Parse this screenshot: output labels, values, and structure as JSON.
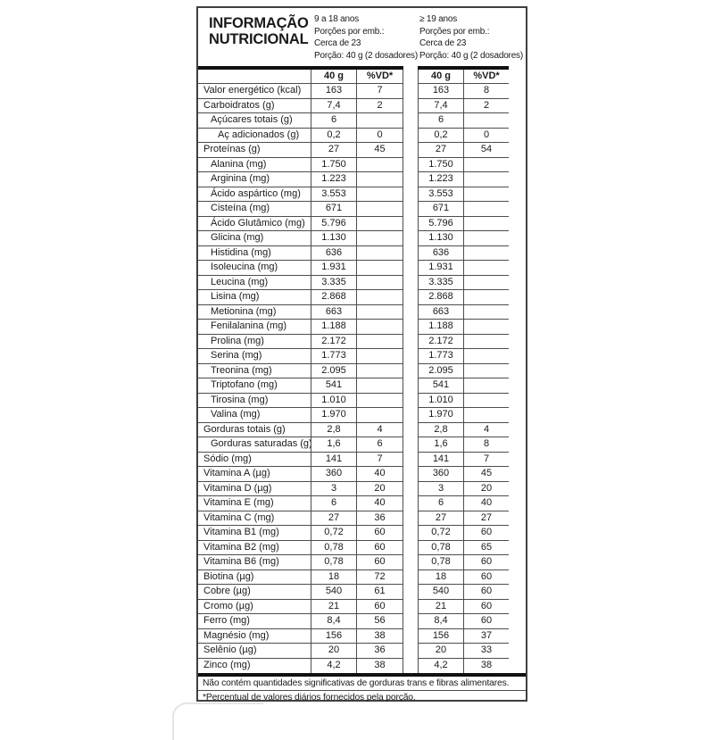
{
  "table": {
    "title_line1": "INFORMAÇÃO",
    "title_line2": "NUTRICIONAL",
    "groups": [
      {
        "age": "9 a 18 anos",
        "portions_label": "Porções por emb.:",
        "portions_value": "Cerca de 23",
        "serving": "Porção: 40 g (2 dosadores)",
        "col_amount": "40 g",
        "col_dv": "%VD*"
      },
      {
        "age": "≥ 19 anos",
        "portions_label": "Porções por emb.:",
        "portions_value": "Cerca de 23",
        "serving": "Porção: 40 g (2 dosadores)",
        "col_amount": "40 g",
        "col_dv": "%VD*"
      }
    ],
    "rows": [
      {
        "label": "Valor energético (kcal)",
        "indent": 0,
        "v1": "163",
        "vd1": "7",
        "v2": "163",
        "vd2": "8"
      },
      {
        "label": "Carboidratos (g)",
        "indent": 0,
        "v1": "7,4",
        "vd1": "2",
        "v2": "7,4",
        "vd2": "2"
      },
      {
        "label": "Açúcares totais (g)",
        "indent": 1,
        "v1": "6",
        "vd1": "",
        "v2": "6",
        "vd2": ""
      },
      {
        "label": "Aç adicionados (g)",
        "indent": 2,
        "v1": "0,2",
        "vd1": "0",
        "v2": "0,2",
        "vd2": "0"
      },
      {
        "label": "Proteínas (g)",
        "indent": 0,
        "v1": "27",
        "vd1": "45",
        "v2": "27",
        "vd2": "54"
      },
      {
        "label": "Alanina (mg)",
        "indent": 1,
        "v1": "1.750",
        "vd1": "",
        "v2": "1.750",
        "vd2": ""
      },
      {
        "label": "Arginina (mg)",
        "indent": 1,
        "v1": "1.223",
        "vd1": "",
        "v2": "1.223",
        "vd2": ""
      },
      {
        "label": "Ácido aspártico (mg)",
        "indent": 1,
        "v1": "3.553",
        "vd1": "",
        "v2": "3.553",
        "vd2": ""
      },
      {
        "label": "Cisteína (mg)",
        "indent": 1,
        "v1": "671",
        "vd1": "",
        "v2": "671",
        "vd2": ""
      },
      {
        "label": "Ácido Glutâmico (mg)",
        "indent": 1,
        "v1": "5.796",
        "vd1": "",
        "v2": "5.796",
        "vd2": ""
      },
      {
        "label": "Glicina (mg)",
        "indent": 1,
        "v1": "1.130",
        "vd1": "",
        "v2": "1.130",
        "vd2": ""
      },
      {
        "label": "Histidina (mg)",
        "indent": 1,
        "v1": "636",
        "vd1": "",
        "v2": "636",
        "vd2": ""
      },
      {
        "label": "Isoleucina (mg)",
        "indent": 1,
        "v1": "1.931",
        "vd1": "",
        "v2": "1.931",
        "vd2": ""
      },
      {
        "label": "Leucina (mg)",
        "indent": 1,
        "v1": "3.335",
        "vd1": "",
        "v2": "3.335",
        "vd2": ""
      },
      {
        "label": "Lisina (mg)",
        "indent": 1,
        "v1": "2.868",
        "vd1": "",
        "v2": "2.868",
        "vd2": ""
      },
      {
        "label": "Metionina (mg)",
        "indent": 1,
        "v1": "663",
        "vd1": "",
        "v2": "663",
        "vd2": ""
      },
      {
        "label": "Fenilalanina (mg)",
        "indent": 1,
        "v1": "1.188",
        "vd1": "",
        "v2": "1.188",
        "vd2": ""
      },
      {
        "label": "Prolina (mg)",
        "indent": 1,
        "v1": "2.172",
        "vd1": "",
        "v2": "2.172",
        "vd2": ""
      },
      {
        "label": "Serina (mg)",
        "indent": 1,
        "v1": "1.773",
        "vd1": "",
        "v2": "1.773",
        "vd2": ""
      },
      {
        "label": "Treonina (mg)",
        "indent": 1,
        "v1": "2.095",
        "vd1": "",
        "v2": "2.095",
        "vd2": ""
      },
      {
        "label": "Triptofano (mg)",
        "indent": 1,
        "v1": "541",
        "vd1": "",
        "v2": "541",
        "vd2": ""
      },
      {
        "label": "Tirosina (mg)",
        "indent": 1,
        "v1": "1.010",
        "vd1": "",
        "v2": "1.010",
        "vd2": ""
      },
      {
        "label": "Valina (mg)",
        "indent": 1,
        "v1": "1.970",
        "vd1": "",
        "v2": "1.970",
        "vd2": ""
      },
      {
        "label": "Gorduras totais (g)",
        "indent": 0,
        "v1": "2,8",
        "vd1": "4",
        "v2": "2,8",
        "vd2": "4"
      },
      {
        "label": "Gorduras saturadas (g)",
        "indent": 1,
        "v1": "1,6",
        "vd1": "6",
        "v2": "1,6",
        "vd2": "8"
      },
      {
        "label": "Sódio (mg)",
        "indent": 0,
        "v1": "141",
        "vd1": "7",
        "v2": "141",
        "vd2": "7"
      },
      {
        "label": "Vitamina A (µg)",
        "indent": 0,
        "v1": "360",
        "vd1": "40",
        "v2": "360",
        "vd2": "45"
      },
      {
        "label": "Vitamina D (µg)",
        "indent": 0,
        "v1": "3",
        "vd1": "20",
        "v2": "3",
        "vd2": "20"
      },
      {
        "label": "Vitamina E (mg)",
        "indent": 0,
        "v1": "6",
        "vd1": "40",
        "v2": "6",
        "vd2": "40"
      },
      {
        "label": "Vitamina C (mg)",
        "indent": 0,
        "v1": "27",
        "vd1": "36",
        "v2": "27",
        "vd2": "27"
      },
      {
        "label": "Vitamina B1 (mg)",
        "indent": 0,
        "v1": "0,72",
        "vd1": "60",
        "v2": "0,72",
        "vd2": "60"
      },
      {
        "label": "Vitamina B2 (mg)",
        "indent": 0,
        "v1": "0,78",
        "vd1": "60",
        "v2": "0,78",
        "vd2": "65"
      },
      {
        "label": "Vitamina B6 (mg)",
        "indent": 0,
        "v1": "0,78",
        "vd1": "60",
        "v2": "0,78",
        "vd2": "60"
      },
      {
        "label": "Biotina (µg)",
        "indent": 0,
        "v1": "18",
        "vd1": "72",
        "v2": "18",
        "vd2": "60"
      },
      {
        "label": "Cobre (µg)",
        "indent": 0,
        "v1": "540",
        "vd1": "61",
        "v2": "540",
        "vd2": "60"
      },
      {
        "label": "Cromo (µg)",
        "indent": 0,
        "v1": "21",
        "vd1": "60",
        "v2": "21",
        "vd2": "60"
      },
      {
        "label": "Ferro (mg)",
        "indent": 0,
        "v1": "8,4",
        "vd1": "56",
        "v2": "8,4",
        "vd2": "60"
      },
      {
        "label": "Magnésio (mg)",
        "indent": 0,
        "v1": "156",
        "vd1": "38",
        "v2": "156",
        "vd2": "37"
      },
      {
        "label": "Selênio (µg)",
        "indent": 0,
        "v1": "20",
        "vd1": "36",
        "v2": "20",
        "vd2": "33"
      },
      {
        "label": "Zinco (mg)",
        "indent": 0,
        "v1": "4,2",
        "vd1": "38",
        "v2": "4,2",
        "vd2": "38"
      }
    ],
    "footnote1": "Não contém quantidades significativas de gorduras trans e fibras alimentares.",
    "footnote2": "*Percentual de valores diários fornecidos pela porção."
  },
  "colors": {
    "line": "#4d4d4d",
    "thick_bar": "#101010",
    "text": "#1a1a1a",
    "background": "#ffffff"
  }
}
